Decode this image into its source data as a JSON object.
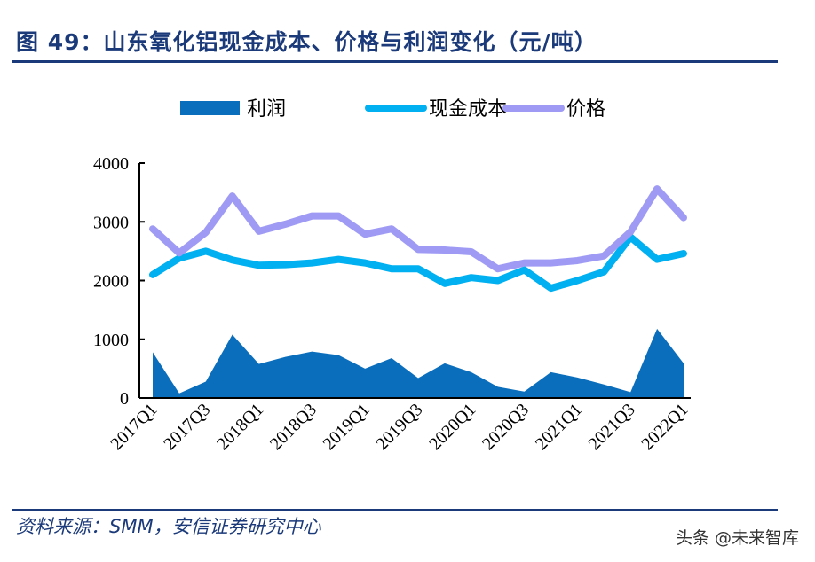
{
  "title": "图 49：山东氧化铝现金成本、价格与利润变化（元/吨）",
  "source": "资料来源：SMM，安信证券研究中心",
  "watermark": "头条 @未来智库",
  "chart_data": {
    "type": "line",
    "title": "",
    "xlabel": "",
    "ylabel": "",
    "ylim": [
      0,
      4000
    ],
    "yticks": [
      0,
      1000,
      2000,
      3000,
      4000
    ],
    "legend_position": "top",
    "grid": false,
    "categories": [
      "2017Q1",
      "2017Q2",
      "2017Q3",
      "2017Q4",
      "2018Q1",
      "2018Q2",
      "2018Q3",
      "2018Q4",
      "2019Q1",
      "2019Q2",
      "2019Q3",
      "2019Q4",
      "2020Q1",
      "2020Q2",
      "2020Q3",
      "2020Q4",
      "2021Q1",
      "2021Q2",
      "2021Q3",
      "2021Q4",
      "2022Q1"
    ],
    "x_tick_labels": [
      "2017Q1",
      "2017Q3",
      "2018Q1",
      "2018Q3",
      "2019Q1",
      "2019Q3",
      "2020Q1",
      "2020Q3",
      "2021Q1",
      "2021Q3",
      "2022Q1"
    ],
    "series": [
      {
        "name": "利润",
        "type": "area",
        "color": "#0a6ebd",
        "values": [
          780,
          80,
          280,
          1080,
          580,
          700,
          790,
          730,
          500,
          680,
          340,
          590,
          440,
          190,
          110,
          440,
          350,
          230,
          100,
          1180,
          590
        ]
      },
      {
        "name": "现金成本",
        "type": "line",
        "color": "#00b0f0",
        "values": [
          2100,
          2380,
          2500,
          2350,
          2260,
          2270,
          2300,
          2360,
          2300,
          2200,
          2200,
          1950,
          2050,
          2000,
          2180,
          1870,
          2000,
          2150,
          2740,
          2360,
          2460
        ]
      },
      {
        "name": "价格",
        "type": "line",
        "color": "#9f9bf5",
        "values": [
          2880,
          2470,
          2820,
          3440,
          2840,
          2960,
          3100,
          3100,
          2790,
          2880,
          2530,
          2520,
          2490,
          2200,
          2300,
          2300,
          2340,
          2420,
          2830,
          3560,
          3070
        ]
      }
    ]
  }
}
